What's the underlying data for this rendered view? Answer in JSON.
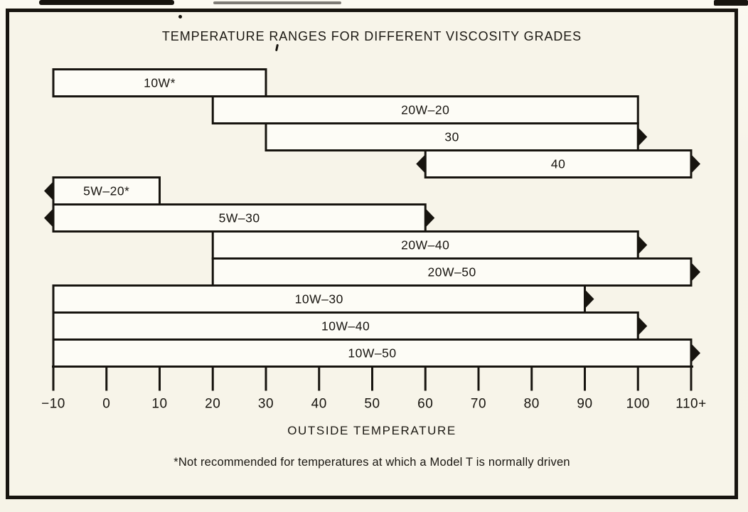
{
  "chart_data": {
    "type": "bar",
    "variant": "horizontal-range-gantt",
    "title": "TEMPERATURE RANGES FOR DIFFERENT VISCOSITY GRADES",
    "xlabel": "OUTSIDE TEMPERATURE",
    "footnote": "*Not recommended for temperatures at which a Model T is normally driven",
    "legend": "none",
    "grid": "off",
    "axis": {
      "min": -10,
      "max": 110,
      "tick_step": 10,
      "tick_labels": [
        "−10",
        "0",
        "10",
        "20",
        "30",
        "40",
        "50",
        "60",
        "70",
        "80",
        "90",
        "100",
        "110+"
      ]
    },
    "bars": [
      {
        "label": "10W*",
        "from": -10,
        "to": 30,
        "arrow_left": false,
        "arrow_right": false
      },
      {
        "label": "20W–20",
        "from": 20,
        "to": 100,
        "arrow_left": false,
        "arrow_right": false
      },
      {
        "label": "30",
        "from": 30,
        "to": 100,
        "arrow_left": false,
        "arrow_right": true
      },
      {
        "label": "40",
        "from": 60,
        "to": 110,
        "arrow_left": true,
        "arrow_right": true
      },
      {
        "label": "5W–20*",
        "from": -10,
        "to": 10,
        "arrow_left": true,
        "arrow_right": false
      },
      {
        "label": "5W–30",
        "from": -10,
        "to": 60,
        "arrow_left": true,
        "arrow_right": true
      },
      {
        "label": "20W–40",
        "from": 20,
        "to": 100,
        "arrow_left": false,
        "arrow_right": true
      },
      {
        "label": "20W–50",
        "from": 20,
        "to": 110,
        "arrow_left": false,
        "arrow_right": true
      },
      {
        "label": "10W–30",
        "from": -10,
        "to": 90,
        "arrow_left": false,
        "arrow_right": true
      },
      {
        "label": "10W–40",
        "from": -10,
        "to": 100,
        "arrow_left": false,
        "arrow_right": true
      },
      {
        "label": "10W–50",
        "from": -10,
        "to": 110,
        "arrow_left": false,
        "arrow_right": true
      }
    ],
    "colors": {
      "ink": "#17140f",
      "paper": "#f7f4e9",
      "bar_fill": "#fdfcf6"
    }
  }
}
